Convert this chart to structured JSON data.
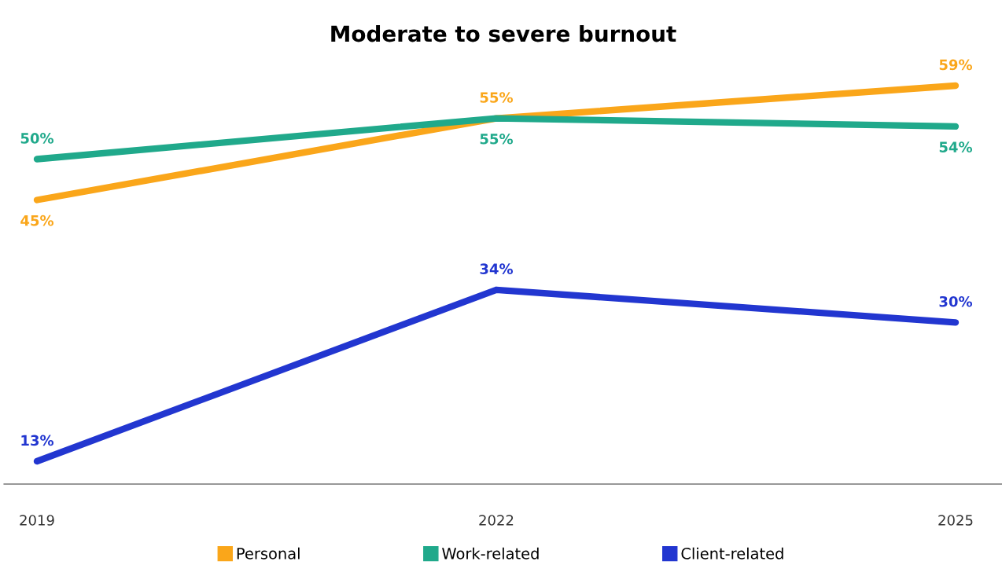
{
  "chart_data": {
    "type": "line",
    "title": "Moderate to severe burnout",
    "categories": [
      "2019",
      "2022",
      "2025"
    ],
    "series": [
      {
        "name": "Personal",
        "color": "#faa61a",
        "values": [
          45,
          55,
          59
        ],
        "value_labels": [
          "45%",
          "55%",
          "59%"
        ]
      },
      {
        "name": "Work-related",
        "color": "#20a98b",
        "values": [
          50,
          55,
          54
        ],
        "value_labels": [
          "50%",
          "55%",
          "54%"
        ]
      },
      {
        "name": "Client-related",
        "color": "#2236d0",
        "values": [
          13,
          34,
          30
        ],
        "value_labels": [
          "13%",
          "34%",
          "30%"
        ]
      }
    ],
    "legend": "bottom",
    "grid": false,
    "marker": "none",
    "line_style": "solid"
  }
}
